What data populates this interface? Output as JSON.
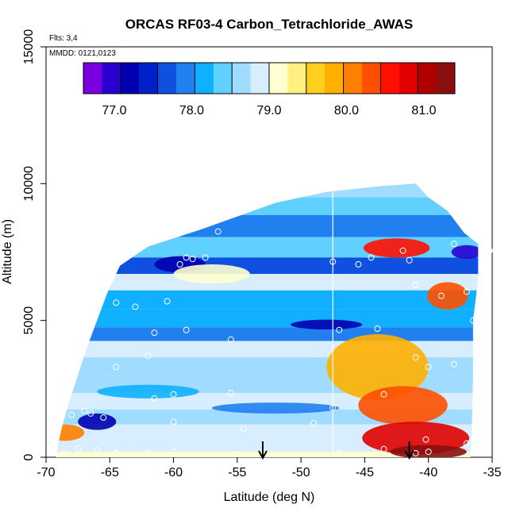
{
  "chart_data": {
    "type": "heatmap",
    "title": "ORCAS RF03-4 Carbon_Tetrachloride_AWAS",
    "flights_note": "Flts: 3,4",
    "date_note": "MMDD: 0121,0123",
    "xlabel": "Latitude (deg N)",
    "ylabel": "Altitude (m)",
    "xlim": [
      -70,
      -35
    ],
    "ylim": [
      0,
      15000
    ],
    "x_ticks": [
      -70,
      -65,
      -60,
      -55,
      -50,
      -45,
      -40,
      -35
    ],
    "y_ticks": [
      0,
      5000,
      10000,
      15000
    ],
    "colorbar": {
      "range": [
        76.6,
        81.4
      ],
      "ticks": [
        77.0,
        78.0,
        79.0,
        80.0,
        81.0
      ],
      "tick_labels": [
        "77.0",
        "78.0",
        "79.0",
        "80.0",
        "81.0"
      ],
      "colors": [
        "#7a00e0",
        "#2a00d0",
        "#0000b0",
        "#0020c8",
        "#1050e0",
        "#2080f0",
        "#10b0ff",
        "#60d0ff",
        "#a0dcff",
        "#d8eeff",
        "#ffffd0",
        "#fff080",
        "#ffd020",
        "#ffb000",
        "#ff8000",
        "#ff5000",
        "#ff1000",
        "#e00000",
        "#b00000",
        "#8a1010"
      ]
    },
    "boundary": {
      "left": [
        [
          -69.2,
          0
        ],
        [
          -69,
          600
        ],
        [
          -68.7,
          1200
        ],
        [
          -68.2,
          2000
        ],
        [
          -67.5,
          3000
        ],
        [
          -66.8,
          4000
        ],
        [
          -66,
          5000
        ],
        [
          -65.2,
          6000
        ],
        [
          -64.2,
          7000
        ],
        [
          -62,
          7700
        ],
        [
          -58,
          8300
        ],
        [
          -55,
          8800
        ],
        [
          -52,
          9300
        ],
        [
          -48,
          9700
        ],
        [
          -44,
          9900
        ],
        [
          -41,
          10000
        ]
      ],
      "right": [
        [
          -41,
          10000
        ],
        [
          -40,
          9500
        ],
        [
          -38.5,
          9000
        ],
        [
          -37.2,
          8200
        ],
        [
          -36.1,
          7800
        ],
        [
          -36.1,
          6500
        ],
        [
          -36.5,
          5000
        ],
        [
          -36.5,
          3000
        ],
        [
          -36.6,
          1000
        ],
        [
          -36.7,
          0
        ]
      ]
    },
    "bands": [
      {
        "y": 9800,
        "value": 78.6
      },
      {
        "y": 9200,
        "value": 78.3
      },
      {
        "y": 8500,
        "value": 78.0
      },
      {
        "y": 7600,
        "value": 78.4
      },
      {
        "y": 7000,
        "value": 77.6
      },
      {
        "y": 6400,
        "value": 78.8
      },
      {
        "y": 5800,
        "value": 78.2
      },
      {
        "y": 5000,
        "value": 78.1
      },
      {
        "y": 4500,
        "value": 77.8
      },
      {
        "y": 4000,
        "value": 78.9
      },
      {
        "y": 3300,
        "value": 78.7
      },
      {
        "y": 2700,
        "value": 78.6
      },
      {
        "y": 2000,
        "value": 78.9
      },
      {
        "y": 1500,
        "value": 78.6
      },
      {
        "y": 900,
        "value": 78.8
      },
      {
        "y": 400,
        "value": 78.9
      },
      {
        "y": 0,
        "value": 79.2
      }
    ],
    "anomalies": [
      {
        "x": -42.5,
        "y": 7650,
        "rx": 2.6,
        "ry": 350,
        "value": 80.5
      },
      {
        "x": -38.5,
        "y": 5900,
        "rx": 1.6,
        "ry": 500,
        "value": 80.4
      },
      {
        "x": -44,
        "y": 3300,
        "rx": 4.0,
        "ry": 1200,
        "value": 79.8
      },
      {
        "x": -42,
        "y": 1900,
        "rx": 3.5,
        "ry": 700,
        "value": 80.3
      },
      {
        "x": -41,
        "y": 700,
        "rx": 4.2,
        "ry": 600,
        "value": 80.8
      },
      {
        "x": -40,
        "y": 200,
        "rx": 3.0,
        "ry": 250,
        "value": 81.2
      },
      {
        "x": -59.5,
        "y": 7050,
        "rx": 2.0,
        "ry": 300,
        "value": 77.1
      },
      {
        "x": -48,
        "y": 4850,
        "rx": 2.8,
        "ry": 180,
        "value": 77.1
      },
      {
        "x": -37,
        "y": 7500,
        "rx": 1.2,
        "ry": 250,
        "value": 77.0
      },
      {
        "x": -68.5,
        "y": 900,
        "rx": 1.5,
        "ry": 300,
        "value": 80.0
      },
      {
        "x": -66,
        "y": 1300,
        "rx": 1.5,
        "ry": 300,
        "value": 77.3
      },
      {
        "x": -52,
        "y": 1800,
        "rx": 5.0,
        "ry": 200,
        "value": 77.9
      },
      {
        "x": -62,
        "y": 2400,
        "rx": 4.0,
        "ry": 250,
        "value": 78.1
      },
      {
        "x": -57,
        "y": 6700,
        "rx": 3.0,
        "ry": 350,
        "value": 79.2
      }
    ],
    "sample_points": [
      [
        -68.6,
        120
      ],
      [
        -67.5,
        320
      ],
      [
        -66,
        250
      ],
      [
        -64.5,
        150
      ],
      [
        -62,
        180
      ],
      [
        -60,
        200
      ],
      [
        -55,
        120
      ],
      [
        -47,
        150
      ],
      [
        -43.5,
        300
      ],
      [
        -41,
        150
      ],
      [
        -40,
        200
      ],
      [
        -40.2,
        650
      ],
      [
        -37,
        500
      ],
      [
        -68,
        1550
      ],
      [
        -66.5,
        1600
      ],
      [
        -65.5,
        1450
      ],
      [
        -60,
        1300
      ],
      [
        -54.5,
        1050
      ],
      [
        -49,
        1250
      ],
      [
        -67,
        1700
      ],
      [
        -61.5,
        2150
      ],
      [
        -60,
        2300
      ],
      [
        -55.5,
        2350
      ],
      [
        -47.5,
        1800
      ],
      [
        -43.5,
        2300
      ],
      [
        -41,
        3650
      ],
      [
        -40,
        3300
      ],
      [
        -38,
        3400
      ],
      [
        -64.5,
        3300
      ],
      [
        -62,
        3700
      ],
      [
        -61.5,
        4550
      ],
      [
        -59,
        4650
      ],
      [
        -55.5,
        4300
      ],
      [
        -47,
        4650
      ],
      [
        -44,
        4700
      ],
      [
        -36.5,
        5000
      ],
      [
        -64.5,
        5650
      ],
      [
        -63,
        5500
      ],
      [
        -60.5,
        5700
      ],
      [
        -56.5,
        8250
      ],
      [
        -59,
        7300
      ],
      [
        -58.5,
        7250
      ],
      [
        -57.5,
        7300
      ],
      [
        -59.5,
        7050
      ],
      [
        -47.5,
        7150
      ],
      [
        -45.5,
        7050
      ],
      [
        -44.5,
        7300
      ],
      [
        -42,
        7550
      ],
      [
        -41.5,
        7200
      ],
      [
        -41,
        6300
      ],
      [
        -39,
        5900
      ],
      [
        -37,
        6050
      ],
      [
        -38,
        7800
      ],
      [
        -35.2,
        7550
      ]
    ],
    "vertical_line_x": -47.5,
    "arrows_x": [
      -53,
      -41.5
    ]
  }
}
